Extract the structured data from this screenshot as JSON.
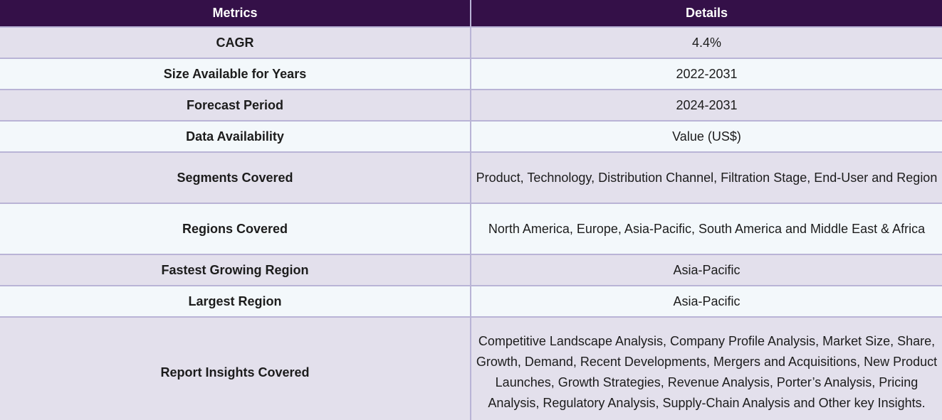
{
  "table": {
    "headers": [
      "Metrics",
      "Details"
    ],
    "rows": [
      {
        "metric": "CAGR",
        "details": "4.4%"
      },
      {
        "metric": "Size Available for Years",
        "details": "2022-2031"
      },
      {
        "metric": "Forecast Period",
        "details": "2024-2031"
      },
      {
        "metric": "Data Availability",
        "details": "Value (US$)"
      },
      {
        "metric": "Segments Covered",
        "details": "Product, Technology, Distribution Channel, Filtration Stage, End-User and Region"
      },
      {
        "metric": "Regions Covered",
        "details": "North America, Europe, Asia-Pacific, South America and Middle East & Africa"
      },
      {
        "metric": "Fastest Growing Region",
        "details": "Asia-Pacific"
      },
      {
        "metric": "Largest Region",
        "details": "Asia-Pacific"
      },
      {
        "metric": "Report Insights Covered",
        "details": "Competitive Landscape Analysis, Company Profile Analysis, Market Size, Share, Growth, Demand, Recent Developments, Mergers and Acquisitions, New Product Launches, Growth Strategies, Revenue Analysis, Porter’s Analysis, Pricing Analysis, Regulatory Analysis, Supply-Chain Analysis and Other key Insights."
      }
    ]
  }
}
